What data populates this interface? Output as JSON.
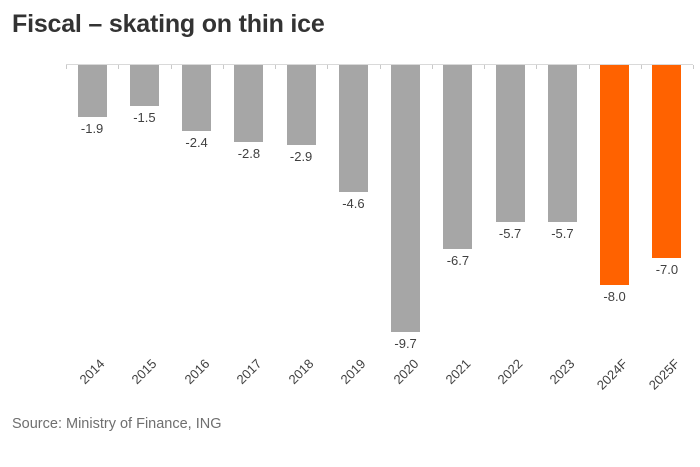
{
  "title": "Fiscal – skating on thin ice",
  "source": "Source: Ministry of Finance, ING",
  "colors": {
    "background": "#FFFFFF",
    "bar_default": "#A6A6A6",
    "bar_forecast": "#FF6200",
    "axis_line": "#D9D9D9",
    "tick": "#C9C9C9",
    "title_text": "#333333",
    "value_label_text": "#404040",
    "axis_label_text": "#404040",
    "source_text": "#6F6F6F"
  },
  "chart_data": {
    "type": "bar",
    "title": "Fiscal – skating on thin ice",
    "categories": [
      "2014",
      "2015",
      "2016",
      "2017",
      "2018",
      "2019",
      "2020",
      "2021",
      "2022",
      "2023",
      "2024F",
      "2025F"
    ],
    "values": [
      -1.9,
      -1.5,
      -2.4,
      -2.8,
      -2.9,
      -4.6,
      -9.7,
      -6.7,
      -5.7,
      -5.7,
      -8.0,
      -7.0
    ],
    "value_labels": [
      "-1.9",
      "-1.5",
      "-2.4",
      "-2.8",
      "-2.9",
      "-4.6",
      "-9.7",
      "-6.7",
      "-5.7",
      "-5.7",
      "-8.0",
      "-7.0"
    ],
    "forecast_categories": [
      "2024F",
      "2025F"
    ],
    "xlabel": "",
    "ylabel": "",
    "ylim": [
      -10,
      0
    ],
    "baseline": "top",
    "grid": false,
    "legend": false,
    "data_labels": true,
    "x_tick_rotation_deg": 45
  }
}
